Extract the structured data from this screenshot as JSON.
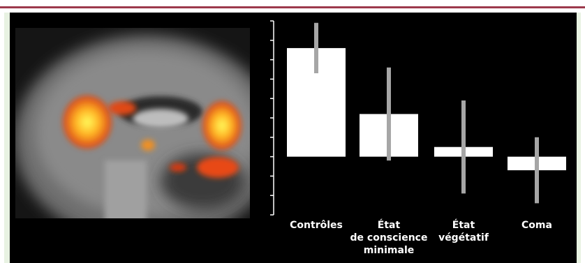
{
  "chart_data": {
    "type": "bar",
    "categories": [
      "Contrôles",
      "État\nde conscience\nminimale",
      "État\nvégétatif",
      "Coma"
    ],
    "values": [
      5.6,
      2.2,
      0.5,
      -0.7
    ],
    "errors": [
      1.3,
      2.4,
      2.4,
      1.7
    ],
    "color": "#ffffff",
    "error_color": "#a6a6a6",
    "ylim": [
      -3,
      7
    ],
    "yticks": [
      -3,
      -2,
      -1,
      0,
      1,
      2,
      3,
      4,
      5,
      6,
      7
    ]
  }
}
